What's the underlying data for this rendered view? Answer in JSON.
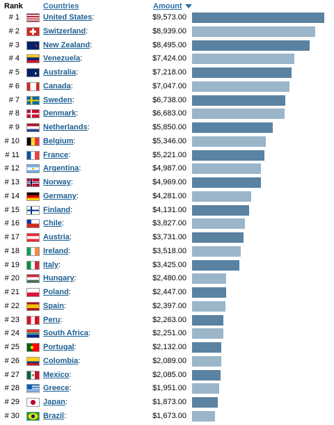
{
  "header": {
    "rank_label": "Rank",
    "countries_label": "Countries",
    "amount_label": "Amount"
  },
  "colors": {
    "bar_odd": "#5a82a2",
    "bar_even": "#9bb5c9",
    "link": "#1c5f93",
    "header_link": "#2a6ea6"
  },
  "chart_data": {
    "type": "bar",
    "orientation": "horizontal",
    "title": "",
    "xlabel": "",
    "ylabel": "",
    "xlim": [
      0,
      9573
    ],
    "categories": [
      "United States",
      "Switzerland",
      "New Zealand",
      "Venezuela",
      "Australia",
      "Canada",
      "Sweden",
      "Denmark",
      "Netherlands",
      "Belgium",
      "France",
      "Argentina",
      "Norway",
      "Germany",
      "Finland",
      "Chile",
      "Austria",
      "Ireland",
      "Italy",
      "Hungary",
      "Poland",
      "Spain",
      "Peru",
      "South Africa",
      "Portugal",
      "Colombia",
      "Mexico",
      "Greece",
      "Japan",
      "Brazil"
    ],
    "ranks": [
      "# 1",
      "# 2",
      "# 3",
      "# 4",
      "# 5",
      "# 6",
      "# 7",
      "# 8",
      "# 9",
      "# 10",
      "# 11",
      "# 12",
      "# 13",
      "# 14",
      "# 15",
      "# 16",
      "# 17",
      "# 18",
      "# 19",
      "# 20",
      "# 21",
      "# 22",
      "# 23",
      "# 24",
      "# 25",
      "# 26",
      "# 27",
      "# 28",
      "# 29",
      "# 30"
    ],
    "values": [
      9573,
      8939,
      8495,
      7424,
      7218,
      7047,
      6738,
      6683,
      5850,
      5346,
      5221,
      4987,
      4969,
      4281,
      4131,
      3827,
      3731,
      3518,
      3425,
      2480,
      2447,
      2397,
      2263,
      2251,
      2132,
      2089,
      2085,
      1951,
      1873,
      1673
    ],
    "value_labels": [
      "$9,573.00",
      "$8,939.00",
      "$8,495.00",
      "$7,424.00",
      "$7,218.00",
      "$7,047.00",
      "$6,738.00",
      "$6,683.00",
      "$5,850.00",
      "$5,346.00",
      "$5,221.00",
      "$4,987.00",
      "$4,969.00",
      "$4,281.00",
      "$4,131.00",
      "$3,827.00",
      "$3,731.00",
      "$3,518.00",
      "$3,425.00",
      "$2,480.00",
      "$2,447.00",
      "$2,397.00",
      "$2,263.00",
      "$2,251.00",
      "$2,132.00",
      "$2,089.00",
      "$2,085.00",
      "$1,951.00",
      "$1,873.00",
      "$1,673.00"
    ],
    "flags": [
      "us",
      "ch",
      "nz",
      "ve",
      "au",
      "ca",
      "se",
      "dk",
      "nl",
      "be",
      "fr",
      "ar",
      "no",
      "de",
      "fi",
      "cl",
      "at",
      "ie",
      "it",
      "hu",
      "pl",
      "es",
      "pe",
      "za",
      "pt",
      "co",
      "mx",
      "gr",
      "jp",
      "br"
    ]
  }
}
